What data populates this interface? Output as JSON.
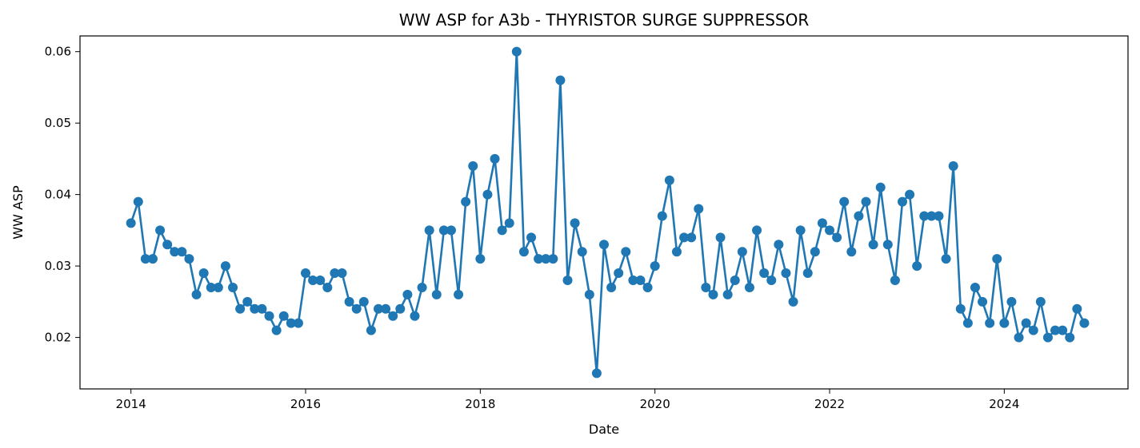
{
  "chart_data": {
    "type": "line",
    "title": "WW ASP for A3b - THYRISTOR SURGE SUPPRESSOR",
    "xlabel": "Date",
    "ylabel": "WW ASP",
    "x_tick_labels": [
      "2014",
      "2016",
      "2018",
      "2020",
      "2022",
      "2024"
    ],
    "y_tick_labels": [
      "0.02",
      "0.03",
      "0.04",
      "0.05",
      "0.06"
    ],
    "xlim": [
      "2013-06",
      "2025-06"
    ],
    "ylim": [
      0.0128,
      0.0622
    ],
    "grid": false,
    "markers": true,
    "color": "#1f77b4",
    "series": [
      {
        "x": [
          "2014-01",
          "2014-02",
          "2014-03",
          "2014-04",
          "2014-05",
          "2014-06",
          "2014-07",
          "2014-08",
          "2014-09",
          "2014-10",
          "2014-11",
          "2014-12",
          "2015-01",
          "2015-02",
          "2015-03",
          "2015-04",
          "2015-05",
          "2015-06",
          "2015-07",
          "2015-08",
          "2015-09",
          "2015-10",
          "2015-11",
          "2015-12",
          "2016-01",
          "2016-02",
          "2016-03",
          "2016-04",
          "2016-05",
          "2016-06",
          "2016-07",
          "2016-08",
          "2016-09",
          "2016-10",
          "2016-11",
          "2016-12",
          "2017-01",
          "2017-02",
          "2017-03",
          "2017-04",
          "2017-05",
          "2017-06",
          "2017-07",
          "2017-08",
          "2017-09",
          "2017-10",
          "2017-11",
          "2017-12",
          "2018-01",
          "2018-02",
          "2018-03",
          "2018-04",
          "2018-05",
          "2018-06",
          "2018-07",
          "2018-08",
          "2018-09",
          "2018-10",
          "2018-11",
          "2018-12",
          "2019-01",
          "2019-02",
          "2019-03",
          "2019-04",
          "2019-05",
          "2019-06",
          "2019-07",
          "2019-08",
          "2019-09",
          "2019-10",
          "2019-11",
          "2019-12",
          "2020-01",
          "2020-02",
          "2020-03",
          "2020-04",
          "2020-05",
          "2020-06",
          "2020-07",
          "2020-08",
          "2020-09",
          "2020-10",
          "2020-11",
          "2020-12",
          "2021-01",
          "2021-02",
          "2021-03",
          "2021-04",
          "2021-05",
          "2021-06",
          "2021-07",
          "2021-08",
          "2021-09",
          "2021-10",
          "2021-11",
          "2021-12",
          "2022-01",
          "2022-02",
          "2022-03",
          "2022-04",
          "2022-05",
          "2022-06",
          "2022-07",
          "2022-08",
          "2022-09",
          "2022-10",
          "2022-11",
          "2022-12",
          "2023-01",
          "2023-02",
          "2023-03",
          "2023-04",
          "2023-05",
          "2023-06",
          "2023-07",
          "2023-08",
          "2023-09",
          "2023-10",
          "2023-11",
          "2023-12",
          "2024-01",
          "2024-02",
          "2024-03",
          "2024-04",
          "2024-05",
          "2024-06",
          "2024-07",
          "2024-08",
          "2024-09",
          "2024-10",
          "2024-11",
          "2024-12"
        ],
        "values": [
          0.036,
          0.039,
          0.031,
          0.031,
          0.035,
          0.033,
          0.032,
          0.032,
          0.031,
          0.026,
          0.029,
          0.027,
          0.027,
          0.03,
          0.027,
          0.024,
          0.025,
          0.024,
          0.024,
          0.023,
          0.021,
          0.023,
          0.022,
          0.022,
          0.029,
          0.028,
          0.028,
          0.027,
          0.029,
          0.029,
          0.025,
          0.024,
          0.025,
          0.021,
          0.024,
          0.024,
          0.023,
          0.024,
          0.026,
          0.023,
          0.027,
          0.035,
          0.026,
          0.035,
          0.035,
          0.026,
          0.039,
          0.044,
          0.031,
          0.04,
          0.045,
          0.035,
          0.036,
          0.06,
          0.032,
          0.034,
          0.031,
          0.031,
          0.031,
          0.056,
          0.028,
          0.036,
          0.032,
          0.026,
          0.015,
          0.033,
          0.027,
          0.029,
          0.032,
          0.028,
          0.028,
          0.027,
          0.03,
          0.037,
          0.042,
          0.032,
          0.034,
          0.034,
          0.038,
          0.027,
          0.026,
          0.034,
          0.026,
          0.028,
          0.032,
          0.027,
          0.035,
          0.029,
          0.028,
          0.033,
          0.029,
          0.025,
          0.035,
          0.029,
          0.032,
          0.036,
          0.035,
          0.034,
          0.039,
          0.032,
          0.037,
          0.039,
          0.033,
          0.041,
          0.033,
          0.028,
          0.039,
          0.04,
          0.03,
          0.037,
          0.037,
          0.037,
          0.031,
          0.044,
          0.024,
          0.022,
          0.027,
          0.025,
          0.022,
          0.031,
          0.022,
          0.025,
          0.02,
          0.022,
          0.021,
          0.025,
          0.02,
          0.021,
          0.021,
          0.02,
          0.024,
          0.022
        ]
      }
    ]
  }
}
